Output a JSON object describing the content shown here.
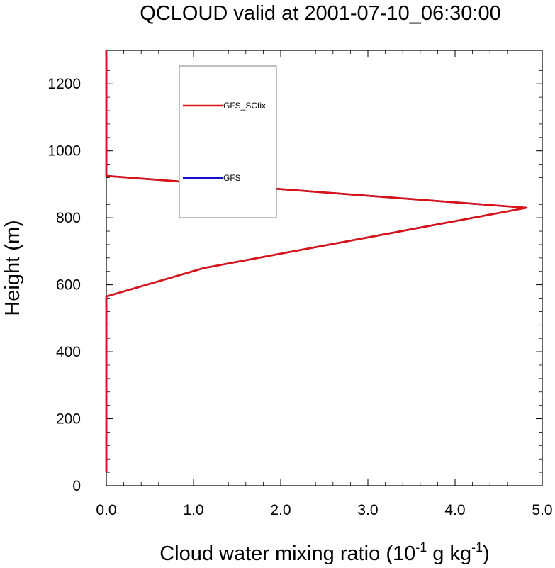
{
  "chart_data": {
    "type": "line",
    "title": "QCLOUD valid at 2001-07-10_06:30:00",
    "xlabel": "Cloud water mixing ratio (10",
    "xlabel_exp1": "-1",
    "xlabel_mid": " g kg",
    "xlabel_exp2": "-1",
    "xlabel_end": ")",
    "ylabel": "Height (m)",
    "xlim": [
      0.0,
      5.0
    ],
    "ylim": [
      0,
      1300
    ],
    "xticks": [
      0.0,
      1.0,
      2.0,
      3.0,
      4.0,
      5.0
    ],
    "xtick_labels": [
      "0.0",
      "1.0",
      "2.0",
      "3.0",
      "4.0",
      "5.0"
    ],
    "yticks": [
      0,
      200,
      400,
      600,
      800,
      1000,
      1200
    ],
    "ytick_labels": [
      "0",
      "200",
      "400",
      "600",
      "800",
      "1000",
      "1200"
    ],
    "legend_position": "top-left inside",
    "series": [
      {
        "name": "GFS",
        "color": "#1010c8",
        "points": [
          [
            0.0,
            40
          ],
          [
            0.0,
            565
          ],
          [
            1.12,
            650
          ],
          [
            4.82,
            830
          ],
          [
            0.0,
            925
          ],
          [
            0.0,
            1300
          ]
        ]
      },
      {
        "name": "GFS_SCfix",
        "color": "#dd1111",
        "points": [
          [
            0.0,
            40
          ],
          [
            0.0,
            565
          ],
          [
            1.12,
            650
          ],
          [
            4.82,
            830
          ],
          [
            0.0,
            925
          ],
          [
            0.0,
            1300
          ]
        ]
      }
    ],
    "legend": [
      {
        "name": "GFS_SCfix",
        "color": "#dd1111"
      },
      {
        "name": "GFS",
        "color": "#1010c8"
      }
    ]
  }
}
